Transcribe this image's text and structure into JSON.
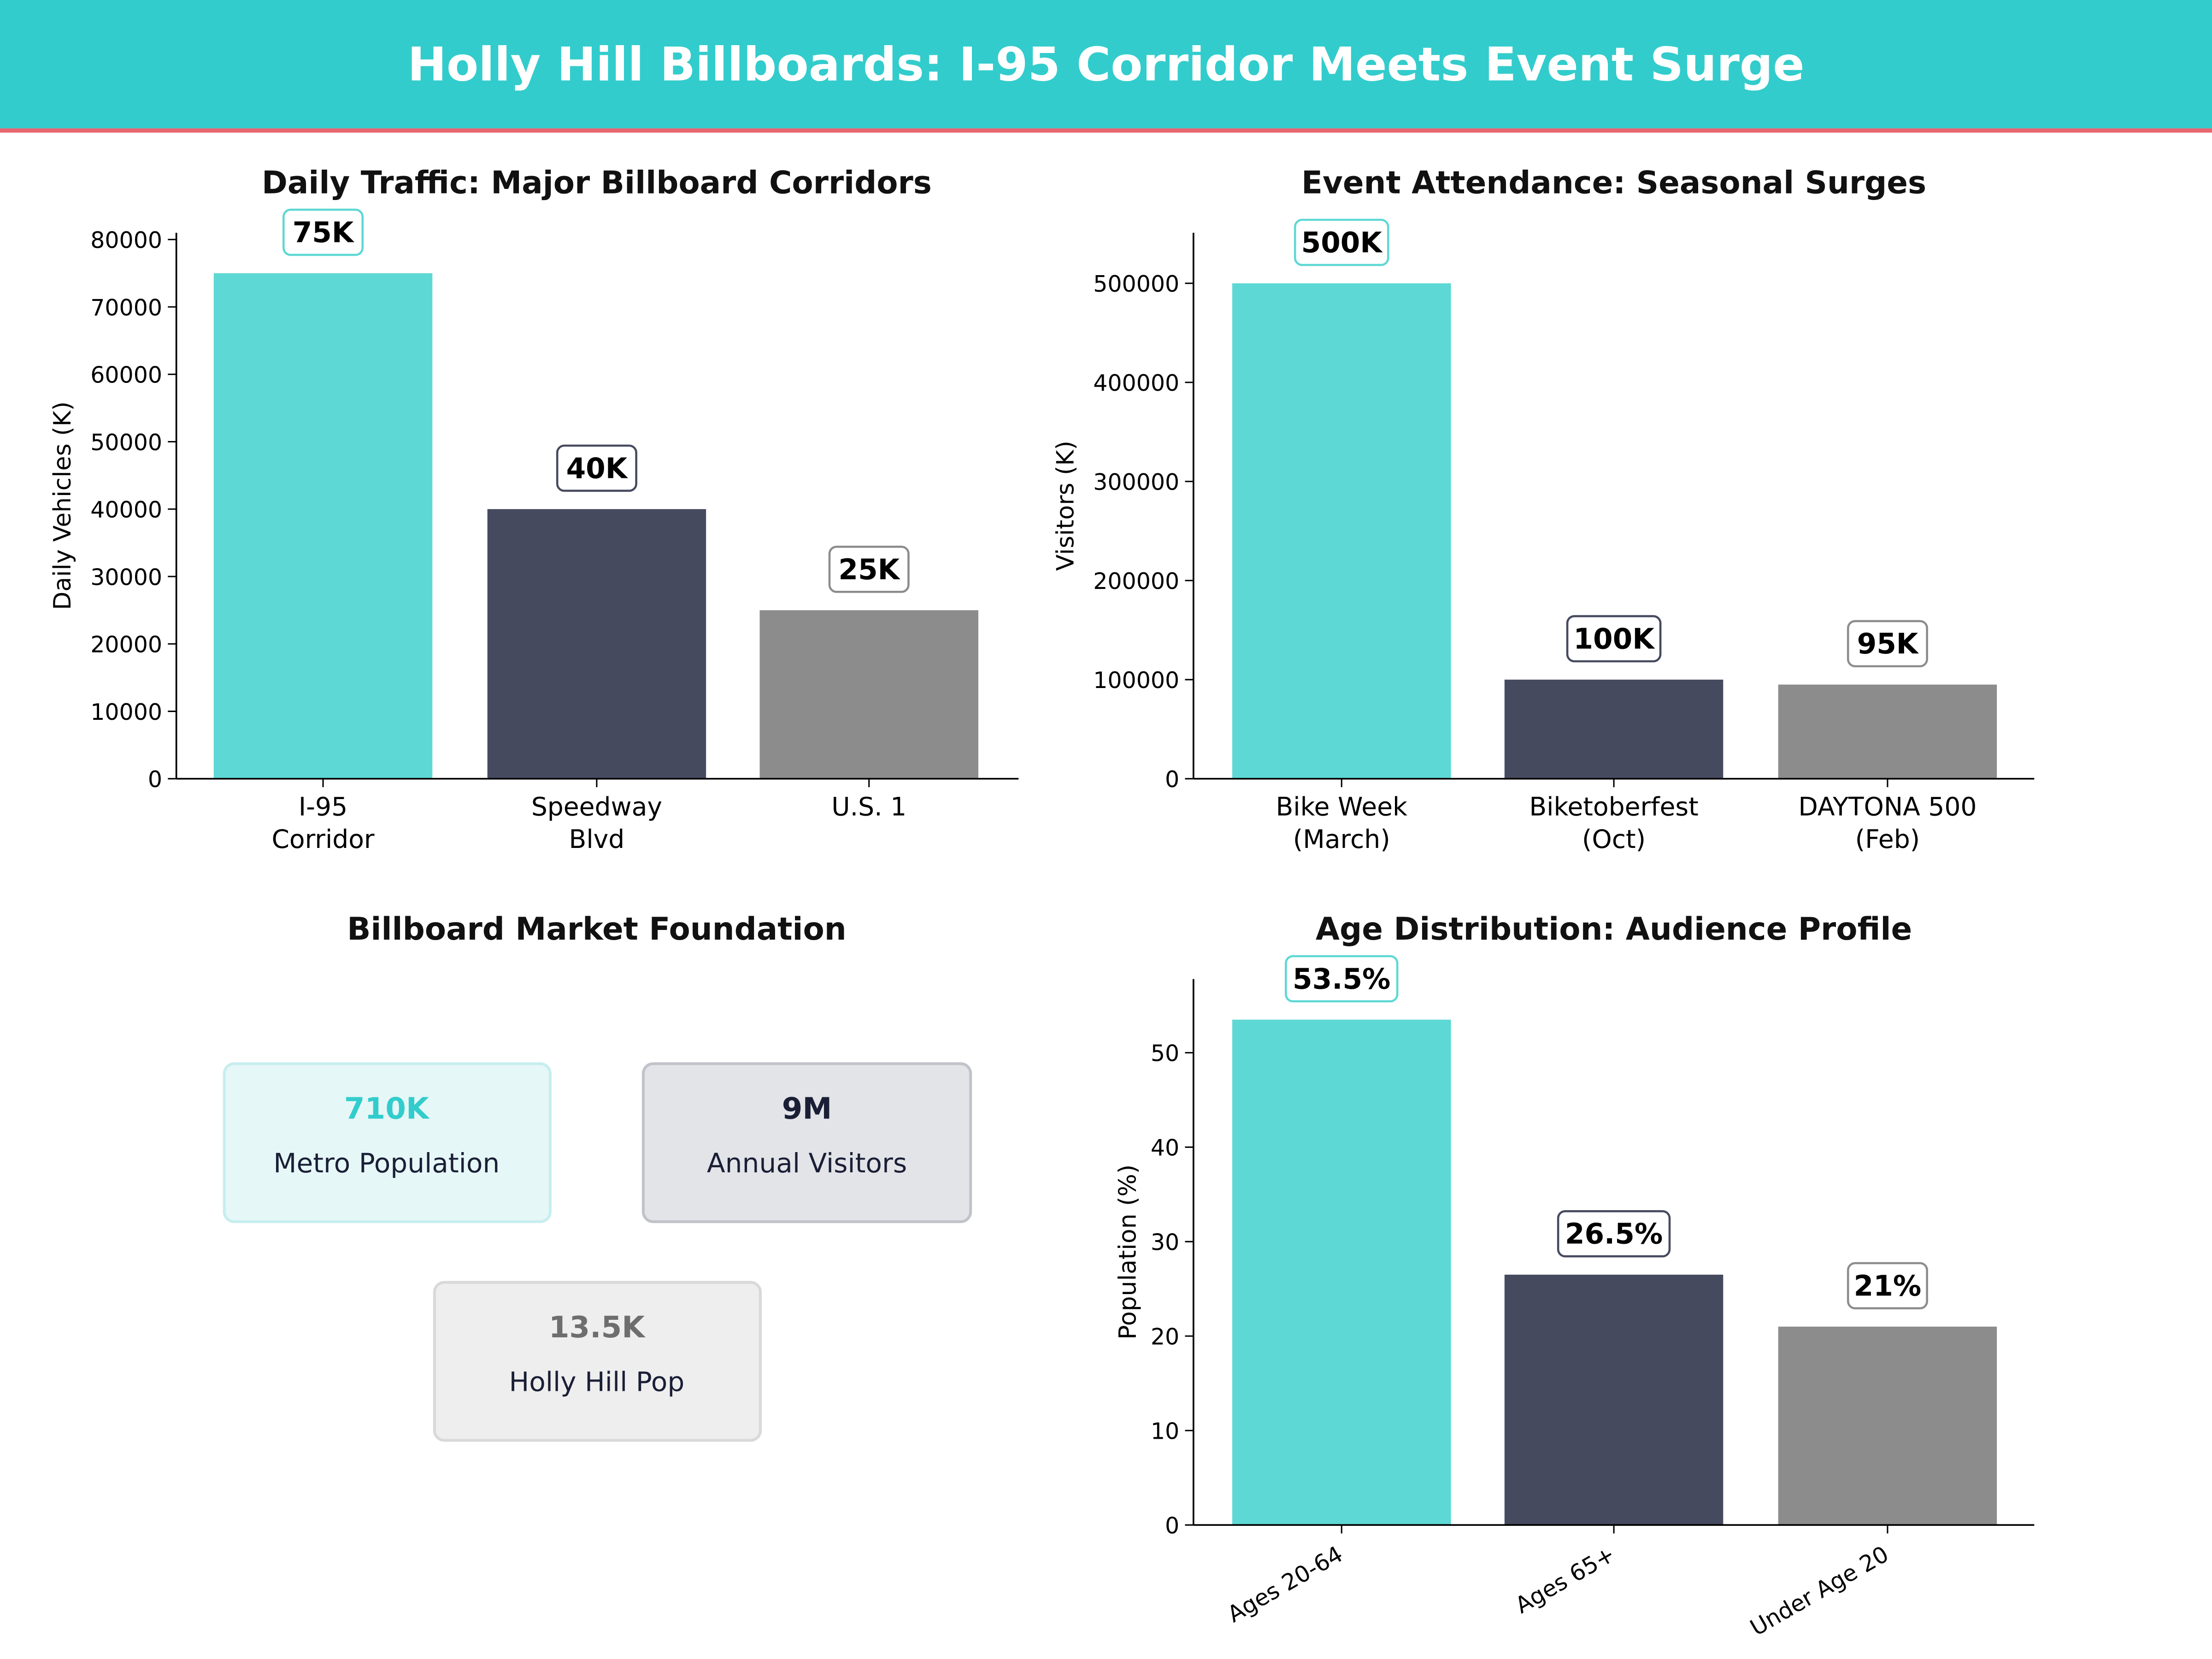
{
  "header": {
    "title": "Holly Hill Billboards: I-95 Corridor Meets Event Surge",
    "background_color": "#33CCCC",
    "accent_line_color": "#E8646E"
  },
  "colors": {
    "teal": "#5DD8D4",
    "navy": "#464A5F",
    "gray": "#8C8C8C"
  },
  "chart_data": [
    {
      "type": "bar",
      "title": "Daily Traffic: Major Billboard Corridors",
      "xlabel": "",
      "ylabel": "Daily Vehicles (K)",
      "categories": [
        "I-95\nCorridor",
        "Speedway\nBlvd",
        "U.S. 1"
      ],
      "values": [
        75000,
        40000,
        25000
      ],
      "data_labels": [
        "75K",
        "40K",
        "25K"
      ],
      "yticks": [
        0,
        10000,
        20000,
        30000,
        40000,
        50000,
        60000,
        70000,
        80000
      ],
      "ylim": [
        0,
        81000
      ],
      "bar_colors": [
        "#5DD8D4",
        "#464A5F",
        "#8C8C8C"
      ],
      "grid": false,
      "xtick_rotation": 0
    },
    {
      "type": "bar",
      "title": "Event Attendance: Seasonal Surges",
      "xlabel": "",
      "ylabel": "Visitors (K)",
      "categories": [
        "Bike Week\n(March)",
        "Biketoberfest\n(Oct)",
        "DAYTONA 500\n(Feb)"
      ],
      "values": [
        500000,
        100000,
        95000
      ],
      "data_labels": [
        "500K",
        "100K",
        "95K"
      ],
      "yticks": [
        0,
        100000,
        200000,
        300000,
        400000,
        500000
      ],
      "ylim": [
        0,
        551000
      ],
      "bar_colors": [
        "#5DD8D4",
        "#464A5F",
        "#8C8C8C"
      ],
      "grid": false,
      "xtick_rotation": 0
    },
    {
      "type": "bar",
      "title": "Age Distribution: Audience Profile",
      "xlabel": "",
      "ylabel": "Population (%)",
      "categories": [
        "Ages 20-64",
        "Ages 65+",
        "Under Age 20"
      ],
      "values": [
        53.5,
        26.5,
        21
      ],
      "data_labels": [
        "53.5%",
        "26.5%",
        "21%"
      ],
      "yticks": [
        0,
        10,
        20,
        30,
        40,
        50
      ],
      "ylim": [
        0,
        57.8
      ],
      "bar_colors": [
        "#5DD8D4",
        "#464A5F",
        "#8C8C8C"
      ],
      "grid": false,
      "xtick_rotation": 30
    }
  ],
  "foundation": {
    "title": "Billboard Market Foundation",
    "cards": [
      {
        "value": "710K",
        "label": "Metro Population",
        "value_color": "#33CCCC",
        "fill": "#E6F7F7",
        "stroke": "#C8EEEE"
      },
      {
        "value": "9M",
        "label": "Annual Visitors",
        "value_color": "#1A1F36",
        "fill": "#E3E4E8",
        "stroke": "#C2C3CA"
      },
      {
        "value": "13.5K",
        "label": "Holly Hill Pop",
        "value_color": "#6E6E6E",
        "fill": "#EEEEEE",
        "stroke": "#D9D9D9"
      }
    ]
  }
}
